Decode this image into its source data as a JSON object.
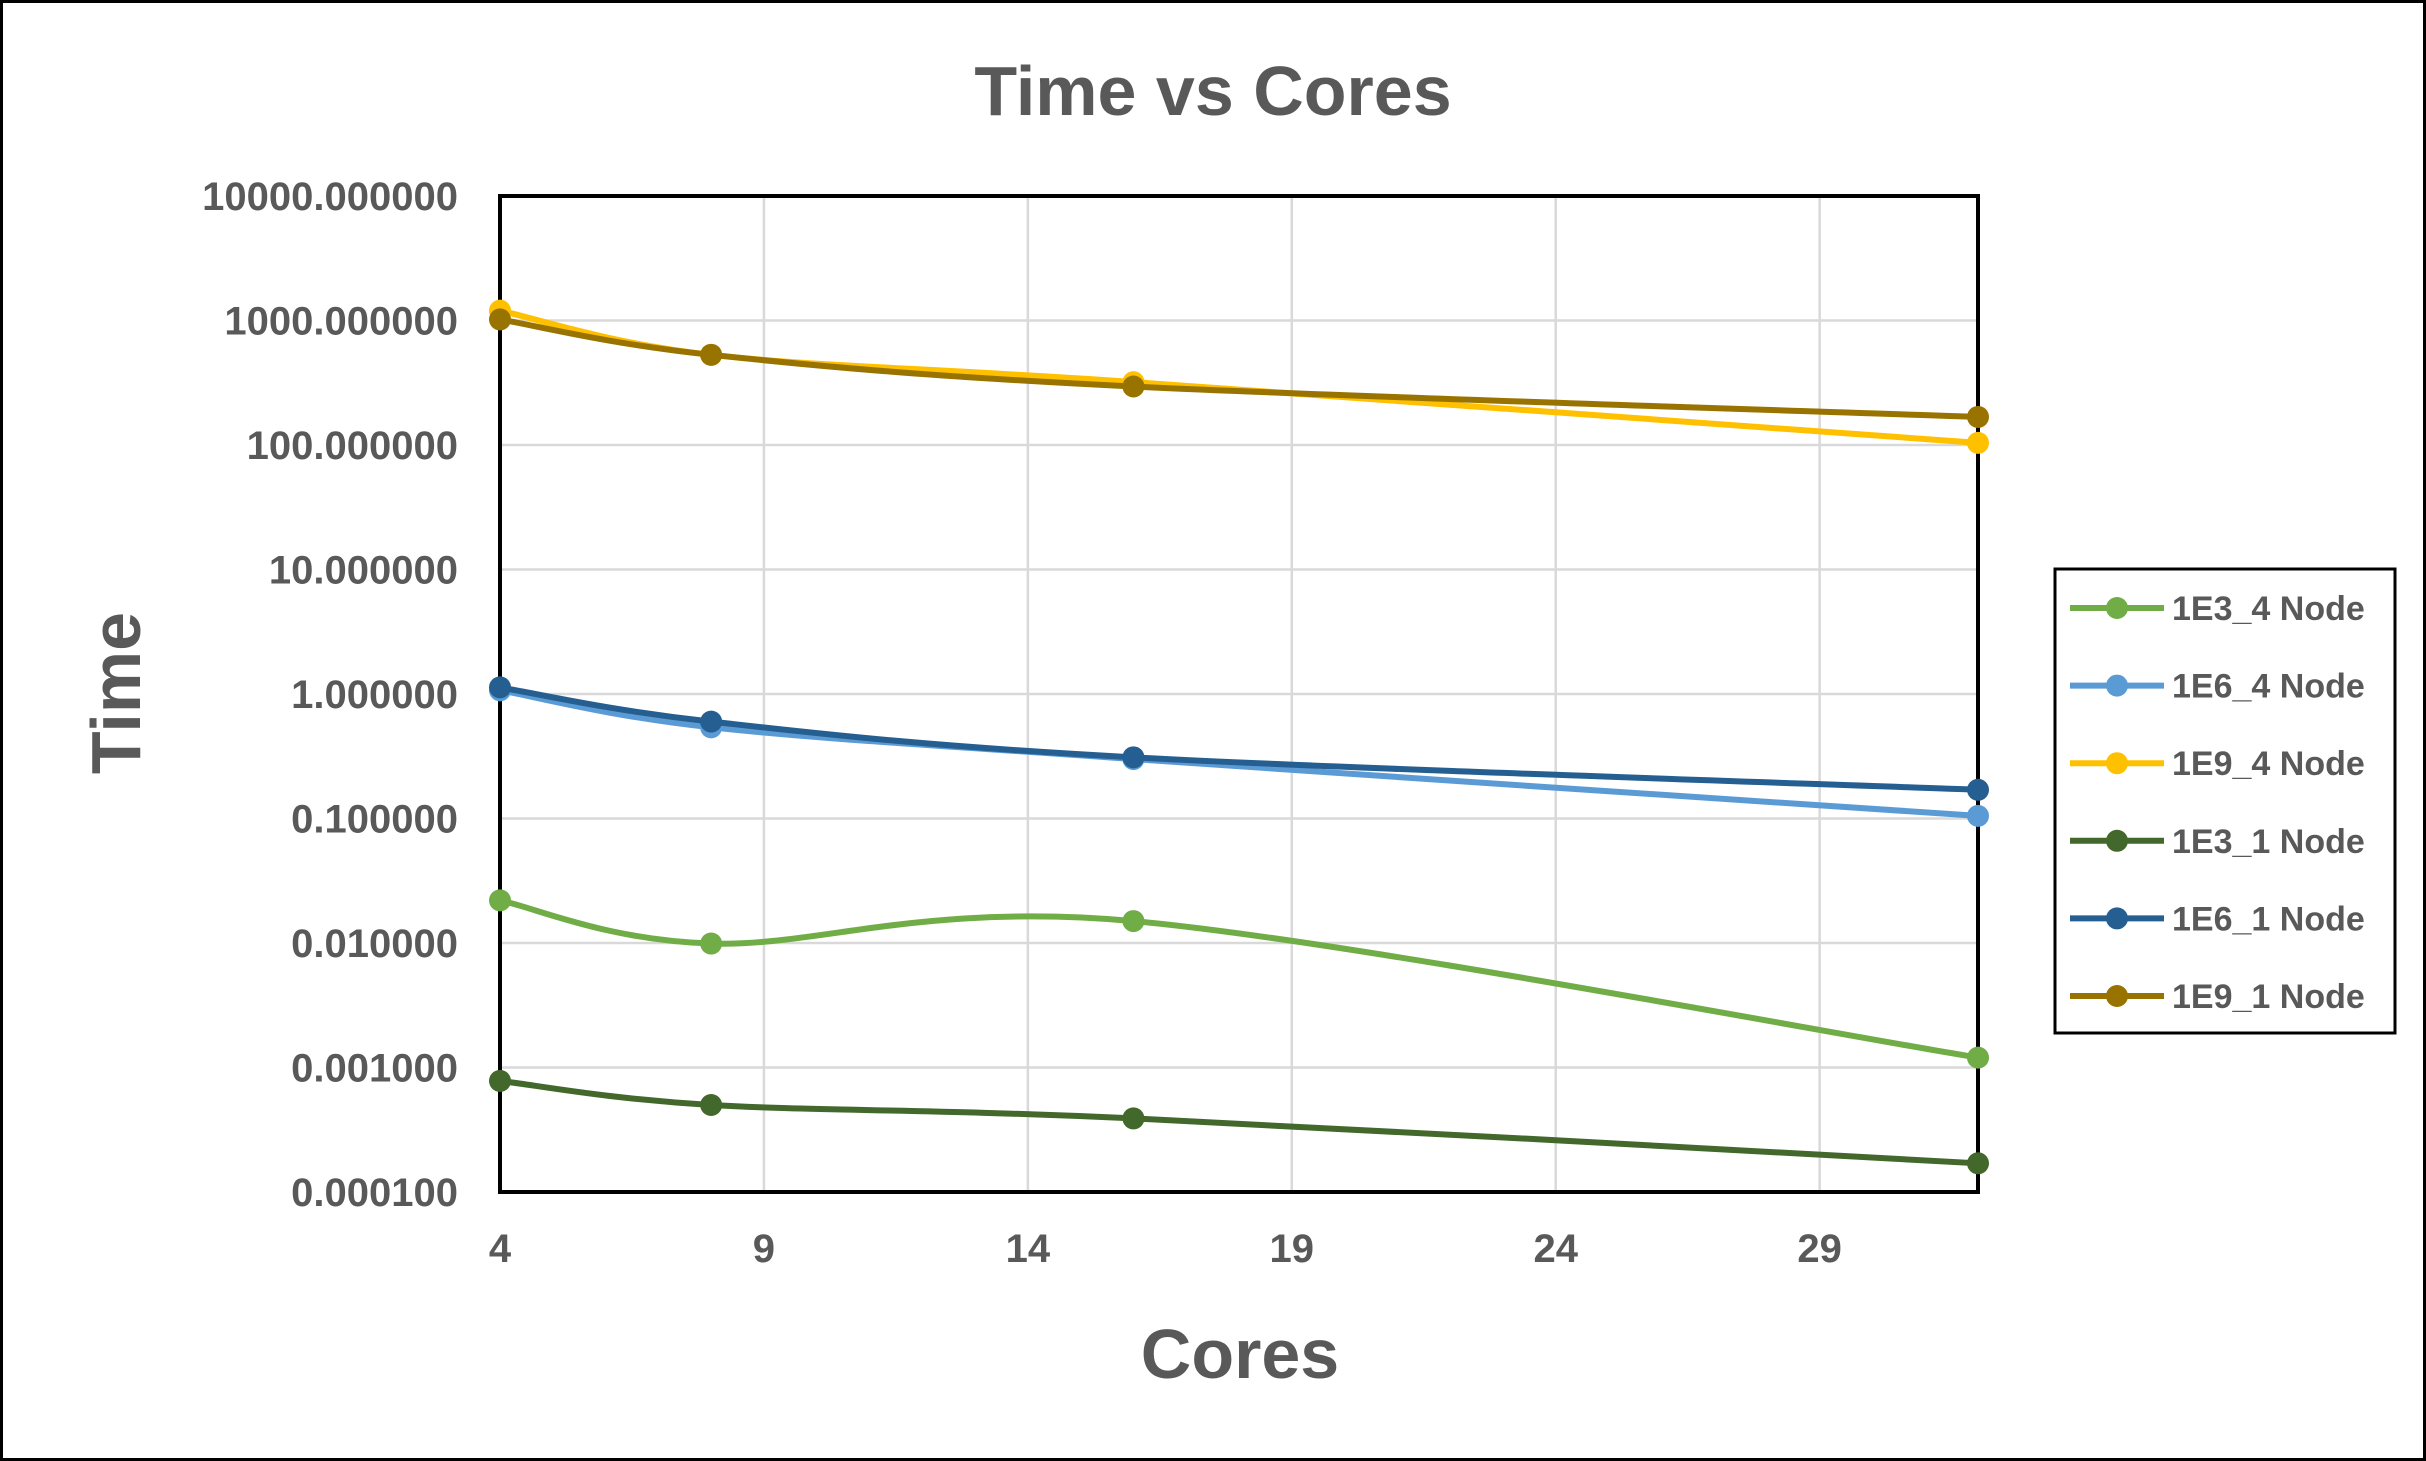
{
  "chart_data": {
    "type": "line",
    "title": "Time vs Cores",
    "xlabel": "Cores",
    "ylabel": "Time",
    "x": [
      4,
      8,
      16,
      32
    ],
    "xlim": [
      4,
      32
    ],
    "x_ticks": [
      4,
      9,
      14,
      19,
      24,
      29
    ],
    "x_tick_labels": [
      "4",
      "9",
      "14",
      "19",
      "24",
      "29"
    ],
    "yscale": "log",
    "ylim": [
      0.0001,
      10000
    ],
    "y_ticks": [
      10000,
      1000,
      100,
      10,
      1,
      0.1,
      0.01,
      0.001,
      0.0001
    ],
    "y_tick_labels": [
      "10000.000000",
      "1000.000000",
      "100.000000",
      "10.000000",
      "1.000000",
      "0.100000",
      "0.010000",
      "0.001000",
      "0.000100"
    ],
    "grid": true,
    "smoothed": true,
    "legend_position": "right",
    "series": [
      {
        "name": "1E3_4 Node",
        "color": "#70AD47",
        "values": [
          0.022,
          0.0099,
          0.015,
          0.0012
        ]
      },
      {
        "name": "1E6_4 Node",
        "color": "#5B9BD5",
        "values": [
          1.07,
          0.54,
          0.3,
          0.105
        ]
      },
      {
        "name": "1E9_4 Node",
        "color": "#FFC000",
        "values": [
          1200,
          530,
          320,
          104
        ]
      },
      {
        "name": "1E3_1 Node",
        "color": "#43682B",
        "values": [
          0.00078,
          0.0005,
          0.00039,
          0.00017
        ]
      },
      {
        "name": "1E6_1 Node",
        "color": "#255E91",
        "values": [
          1.13,
          0.6,
          0.31,
          0.17
        ]
      },
      {
        "name": "1E9_1 Node",
        "color": "#997300",
        "values": [
          1020,
          530,
          295,
          168
        ]
      }
    ]
  }
}
